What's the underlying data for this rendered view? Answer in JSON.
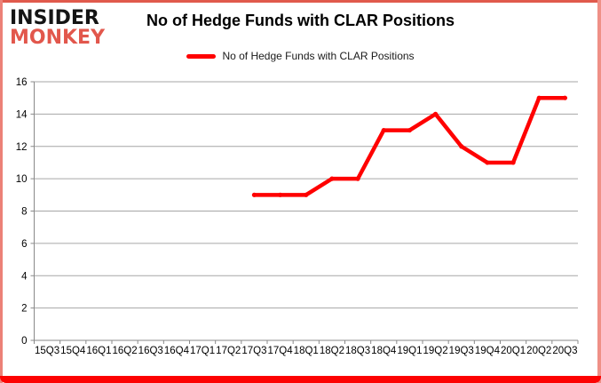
{
  "brand": {
    "line1": "INSIDER",
    "line2": "MONKEY"
  },
  "header": {
    "title": "No of Hedge Funds with CLAR Positions"
  },
  "legend": {
    "label": "No of Hedge Funds with CLAR Positions"
  },
  "colors": {
    "series_line": "#ff0000",
    "gridline": "#a6a6a6",
    "axis": "#898989",
    "tick_text": "#000000",
    "frame_side": "#ec8177",
    "frame_bottom": "#fd0202",
    "brand_black": "#141414",
    "brand_red": "#e2574c"
  },
  "chart_data": {
    "type": "line",
    "title": "No of Hedge Funds with CLAR Positions",
    "xlabel": "",
    "ylabel": "",
    "categories": [
      "15Q3",
      "15Q4",
      "16Q1",
      "16Q2",
      "16Q3",
      "16Q4",
      "17Q1",
      "17Q2",
      "17Q3",
      "17Q4",
      "18Q1",
      "18Q2",
      "18Q3",
      "18Q4",
      "19Q1",
      "19Q2",
      "19Q3",
      "19Q4",
      "20Q1",
      "20Q2",
      "20Q3"
    ],
    "series": [
      {
        "name": "No of Hedge Funds with CLAR Positions",
        "color": "#ff0000",
        "values": [
          null,
          null,
          null,
          null,
          null,
          null,
          null,
          null,
          9,
          9,
          9,
          10,
          10,
          13,
          13,
          14,
          12,
          11,
          11,
          15,
          15
        ]
      }
    ],
    "ylim": [
      0,
      16
    ],
    "ytick_step": 2,
    "grid": true,
    "legend_position": "top-center"
  }
}
